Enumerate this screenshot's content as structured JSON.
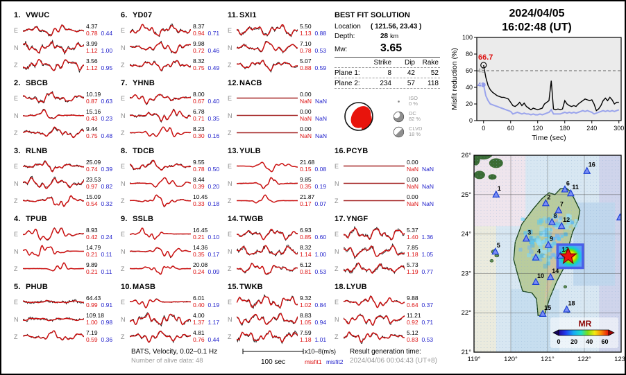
{
  "header": {
    "date": "2024/04/05",
    "time": "16:02:48  (UT)"
  },
  "best_fit": {
    "title": "BEST FIT SOLUTION",
    "location_label": "Location",
    "location_value": "( 121.56,  23.43 )",
    "depth_label": "Depth:",
    "depth_value": "28",
    "depth_unit": "km",
    "mw_label": "Mw:",
    "mw_value": "3.65",
    "table": {
      "headers": [
        "Strike",
        "Dip",
        "Rake"
      ],
      "rows": [
        {
          "label": "Plane 1:",
          "values": [
            8,
            42,
            52
          ]
        },
        {
          "label": "Plane 2:",
          "values": [
            234,
            57,
            118
          ]
        }
      ]
    },
    "components": [
      {
        "name": "ISO",
        "pct": "0 %"
      },
      {
        "name": "DC",
        "pct": "82 %"
      },
      {
        "name": "CLVD",
        "pct": "18 %"
      }
    ]
  },
  "chart_data": {
    "type": "line",
    "title": "",
    "xlabel": "Time (sec)",
    "ylabel": "Misfit reduction (%)",
    "xlim": [
      -15,
      305
    ],
    "ylim": [
      0,
      100
    ],
    "x_ticks": [
      0,
      60,
      120,
      180,
      240,
      300
    ],
    "y_ticks": [
      0,
      20,
      40,
      60,
      80,
      100
    ],
    "dashed_line_y": 60,
    "annotations": [
      {
        "text": "66.7",
        "color": "#dd1111"
      },
      {
        "text": "48",
        "color": "#9a9a9a"
      },
      {
        "text": "43",
        "color": "#8890e8"
      }
    ],
    "x": [
      0,
      5,
      10,
      15,
      20,
      25,
      30,
      35,
      40,
      45,
      50,
      55,
      60,
      65,
      70,
      75,
      80,
      85,
      90,
      95,
      100,
      105,
      110,
      115,
      120,
      125,
      130,
      135,
      140,
      145,
      150,
      155,
      160,
      165,
      170,
      175,
      180,
      185,
      190,
      195,
      200,
      205,
      210,
      215,
      220,
      225,
      230,
      235,
      240,
      245,
      250,
      255,
      260,
      265,
      270,
      275,
      280,
      285,
      290,
      295,
      300
    ],
    "series": [
      {
        "name": "best-solution",
        "color": "#000000",
        "y": [
          66.7,
          52,
          42,
          37,
          34,
          32,
          30,
          29,
          28,
          28,
          27,
          26,
          22,
          18,
          17,
          19,
          22,
          18,
          21,
          17,
          15,
          13,
          15,
          14,
          13,
          14,
          15,
          20,
          22,
          24,
          48,
          14,
          13,
          14,
          13,
          14,
          24,
          20,
          18,
          17,
          18,
          17,
          20,
          22,
          24,
          26,
          25,
          24,
          25,
          20,
          12,
          14,
          18,
          24,
          27,
          24,
          28,
          25,
          20,
          22,
          22
        ]
      },
      {
        "name": "secondary-solution",
        "color": "#9aa4ec",
        "y": [
          43,
          30,
          24,
          20,
          19,
          18,
          17,
          16,
          15,
          14,
          13,
          12,
          11,
          8,
          9,
          10,
          9,
          8,
          9,
          8,
          8,
          7,
          8,
          7,
          7,
          8,
          7,
          8,
          9,
          10,
          13,
          8,
          8,
          8,
          8,
          9,
          10,
          9,
          10,
          9,
          10,
          9,
          10,
          11,
          12,
          11,
          12,
          11,
          10,
          8,
          9,
          10,
          11,
          12,
          11,
          12,
          11,
          12,
          11,
          12,
          13
        ]
      }
    ]
  },
  "map": {
    "lon_ticks": [
      {
        "v": 119,
        "label": "119°"
      },
      {
        "v": 120,
        "label": "120°"
      },
      {
        "v": 121,
        "label": "121°"
      },
      {
        "v": 122,
        "label": "122°"
      },
      {
        "v": 123,
        "label": "123°"
      }
    ],
    "lat_ticks": [
      {
        "v": 21,
        "label": "21°"
      },
      {
        "v": 22,
        "label": "22°"
      },
      {
        "v": 23,
        "label": "23°"
      },
      {
        "v": 24,
        "label": "24°"
      },
      {
        "v": 25,
        "label": "25°"
      },
      {
        "v": 26,
        "label": "26°"
      }
    ],
    "epicenter": {
      "lon": 121.56,
      "lat": 23.43
    },
    "grid_box": {
      "lon_min": 121.27,
      "lon_max": 121.96,
      "lat_min": 23.14,
      "lat_max": 23.73
    },
    "legend": {
      "title": "MR",
      "tick_labels": [
        "0",
        "20",
        "40",
        "60"
      ]
    },
    "stations": [
      {
        "id": "1",
        "lon": 119.6,
        "lat": 25.0
      },
      {
        "id": "2",
        "lon": 120.95,
        "lat": 24.78
      },
      {
        "id": "3",
        "lon": 120.42,
        "lat": 23.88
      },
      {
        "id": "4",
        "lon": 120.68,
        "lat": 23.4
      },
      {
        "id": "5",
        "lon": 119.58,
        "lat": 23.55
      },
      {
        "id": "6",
        "lon": 121.47,
        "lat": 25.13
      },
      {
        "id": "7",
        "lon": 121.3,
        "lat": 24.6
      },
      {
        "id": "8",
        "lon": 121.12,
        "lat": 24.3
      },
      {
        "id": "9",
        "lon": 121.02,
        "lat": 23.72
      },
      {
        "id": "10",
        "lon": 120.68,
        "lat": 22.78
      },
      {
        "id": "11",
        "lon": 121.63,
        "lat": 25.03
      },
      {
        "id": "12",
        "lon": 121.38,
        "lat": 24.2
      },
      {
        "id": "13",
        "lon": 121.35,
        "lat": 23.45
      },
      {
        "id": "14",
        "lon": 121.08,
        "lat": 22.9
      },
      {
        "id": "15",
        "lon": 120.87,
        "lat": 21.97
      },
      {
        "id": "16",
        "lon": 122.07,
        "lat": 25.6
      },
      {
        "id": "17",
        "lon": 122.97,
        "lat": 24.42
      },
      {
        "id": "18",
        "lon": 121.52,
        "lat": 22.08
      }
    ]
  },
  "stations": [
    {
      "num": "1.",
      "name": "VWUC",
      "channels": [
        {
          "comp": "E",
          "amp": "4.37",
          "m1": "0.78",
          "m2": "0.44"
        },
        {
          "comp": "N",
          "amp": "3.99",
          "m1": "1.12",
          "m2": "1.00"
        },
        {
          "comp": "Z",
          "amp": "3.56",
          "m1": "1.12",
          "m2": "0.95"
        }
      ]
    },
    {
      "num": "2.",
      "name": "SBCB",
      "channels": [
        {
          "comp": "E",
          "amp": "10.19",
          "m1": "0.87",
          "m2": "0.63"
        },
        {
          "comp": "N",
          "amp": "15.16",
          "m1": "0.43",
          "m2": "0.23"
        },
        {
          "comp": "Z",
          "amp": "9.44",
          "m1": "0.75",
          "m2": "0.48"
        }
      ]
    },
    {
      "num": "3.",
      "name": "RLNB",
      "channels": [
        {
          "comp": "E",
          "amp": "25.09",
          "m1": "0.74",
          "m2": "0.39"
        },
        {
          "comp": "N",
          "amp": "23.53",
          "m1": "0.97",
          "m2": "0.82"
        },
        {
          "comp": "Z",
          "amp": "15.09",
          "m1": "0.54",
          "m2": "0.32"
        }
      ]
    },
    {
      "num": "4.",
      "name": "TPUB",
      "channels": [
        {
          "comp": "E",
          "amp": "8.93",
          "m1": "0.42",
          "m2": "0.24"
        },
        {
          "comp": "N",
          "amp": "14.79",
          "m1": "0.21",
          "m2": "0.11"
        },
        {
          "comp": "Z",
          "amp": "9.89",
          "m1": "0.21",
          "m2": "0.11"
        }
      ]
    },
    {
      "num": "5.",
      "name": "PHUB",
      "channels": [
        {
          "comp": "E",
          "amp": "64.43",
          "m1": "0.99",
          "m2": "0.91"
        },
        {
          "comp": "N",
          "amp": "109.18",
          "m1": "1.00",
          "m2": "0.98"
        },
        {
          "comp": "Z",
          "amp": "7.19",
          "m1": "0.59",
          "m2": "0.36"
        }
      ]
    },
    {
      "num": "6.",
      "name": "YD07",
      "channels": [
        {
          "comp": "E",
          "amp": "8.37",
          "m1": "0.94",
          "m2": "0.71"
        },
        {
          "comp": "N",
          "amp": "9.98",
          "m1": "0.72",
          "m2": "0.46"
        },
        {
          "comp": "Z",
          "amp": "8.32",
          "m1": "0.75",
          "m2": "0.49"
        }
      ]
    },
    {
      "num": "7.",
      "name": "YHNB",
      "channels": [
        {
          "comp": "E",
          "amp": "8.00",
          "m1": "0.67",
          "m2": "0.40"
        },
        {
          "comp": "N",
          "amp": "6.78",
          "m1": "0.71",
          "m2": "0.35"
        },
        {
          "comp": "Z",
          "amp": "8.23",
          "m1": "0.30",
          "m2": "0.16"
        }
      ]
    },
    {
      "num": "8.",
      "name": "TDCB",
      "channels": [
        {
          "comp": "E",
          "amp": "9.55",
          "m1": "0.78",
          "m2": "0.50"
        },
        {
          "comp": "N",
          "amp": "8.44",
          "m1": "0.39",
          "m2": "0.20"
        },
        {
          "comp": "Z",
          "amp": "10.45",
          "m1": "0.33",
          "m2": "0.18"
        }
      ]
    },
    {
      "num": "9.",
      "name": "SSLB",
      "channels": [
        {
          "comp": "E",
          "amp": "16.45",
          "m1": "0.21",
          "m2": "0.10"
        },
        {
          "comp": "N",
          "amp": "14.36",
          "m1": "0.35",
          "m2": "0.17"
        },
        {
          "comp": "Z",
          "amp": "20.08",
          "m1": "0.24",
          "m2": "0.09"
        }
      ]
    },
    {
      "num": "10.",
      "name": "MASB",
      "channels": [
        {
          "comp": "E",
          "amp": "6.01",
          "m1": "0.40",
          "m2": "0.19"
        },
        {
          "comp": "N",
          "amp": "4.00",
          "m1": "1.37",
          "m2": "1.17"
        },
        {
          "comp": "Z",
          "amp": "4.81",
          "m1": "0.76",
          "m2": "0.44"
        }
      ]
    },
    {
      "num": "11.",
      "name": "SXI1",
      "channels": [
        {
          "comp": "E",
          "amp": "5.50",
          "m1": "1.13",
          "m2": "0.88"
        },
        {
          "comp": "N",
          "amp": "7.10",
          "m1": "0.78",
          "m2": "0.53"
        },
        {
          "comp": "Z",
          "amp": "5.07",
          "m1": "0.88",
          "m2": "0.59"
        }
      ]
    },
    {
      "num": "12.",
      "name": "NACB",
      "channels": [
        {
          "comp": "E",
          "amp": "0.00",
          "m1": "NaN",
          "m2": "NaN"
        },
        {
          "comp": "N",
          "amp": "0.00",
          "m1": "NaN",
          "m2": "NaN"
        },
        {
          "comp": "Z",
          "amp": "0.00",
          "m1": "NaN",
          "m2": "NaN"
        }
      ]
    },
    {
      "num": "13.",
      "name": "YULB",
      "channels": [
        {
          "comp": "E",
          "amp": "21.68",
          "m1": "0.15",
          "m2": "0.08"
        },
        {
          "comp": "N",
          "amp": "9.85",
          "m1": "0.35",
          "m2": "0.19"
        },
        {
          "comp": "Z",
          "amp": "21.87",
          "m1": "0.17",
          "m2": "0.07"
        }
      ]
    },
    {
      "num": "14.",
      "name": "TWGB",
      "channels": [
        {
          "comp": "E",
          "amp": "6.93",
          "m1": "0.85",
          "m2": "0.60"
        },
        {
          "comp": "N",
          "amp": "8.32",
          "m1": "1.14",
          "m2": "1.00"
        },
        {
          "comp": "Z",
          "amp": "6.12",
          "m1": "0.81",
          "m2": "0.53"
        }
      ]
    },
    {
      "num": "15.",
      "name": "TWKB",
      "channels": [
        {
          "comp": "E",
          "amp": "9.32",
          "m1": "1.02",
          "m2": "0.84"
        },
        {
          "comp": "N",
          "amp": "8.83",
          "m1": "1.05",
          "m2": "0.94"
        },
        {
          "comp": "Z",
          "amp": "7.59",
          "m1": "1.18",
          "m2": "1.01"
        }
      ]
    },
    {
      "num": "16.",
      "name": "PCYB",
      "channels": [
        {
          "comp": "E",
          "amp": "0.00",
          "m1": "NaN",
          "m2": "NaN"
        },
        {
          "comp": "N",
          "amp": "0.00",
          "m1": "NaN",
          "m2": "NaN"
        },
        {
          "comp": "Z",
          "amp": "0.00",
          "m1": "NaN",
          "m2": "NaN"
        }
      ]
    },
    {
      "num": "17.",
      "name": "YNGF",
      "channels": [
        {
          "comp": "E",
          "amp": "5.37",
          "m1": "1.40",
          "m2": "1.36"
        },
        {
          "comp": "N",
          "amp": "7.85",
          "m1": "1.18",
          "m2": "1.05"
        },
        {
          "comp": "Z",
          "amp": "5.73",
          "m1": "1.19",
          "m2": "0.77"
        }
      ]
    },
    {
      "num": "18.",
      "name": "LYUB",
      "channels": [
        {
          "comp": "E",
          "amp": "9.88",
          "m1": "0.64",
          "m2": "0.37"
        },
        {
          "comp": "N",
          "amp": "11.21",
          "m1": "0.92",
          "m2": "0.71"
        },
        {
          "comp": "Z",
          "amp": "5.12",
          "m1": "0.83",
          "m2": "0.53"
        }
      ]
    }
  ],
  "footer": {
    "line1": "BATS, Velocity, 0.02–0.1 Hz",
    "line2": "Number of alive data: 48",
    "scale_label": "100 sec",
    "unit_label": "x10–8(m/s)",
    "legend_misfit1": "misfit1",
    "legend_misfit2": "misfit2",
    "result_label": "Result generation time:",
    "result_value": "2024/04/06 00:04:43 (UT+8)"
  },
  "colors": {
    "misfit1": "#dd1111",
    "misfit2": "#2323cc",
    "synthetic_trace": "#cc1111",
    "observed_trace": "#111111",
    "chart_secondary": "#9aa4ec",
    "station_marker": "#7b8ef5",
    "epicenter_star": "#ee1111"
  }
}
